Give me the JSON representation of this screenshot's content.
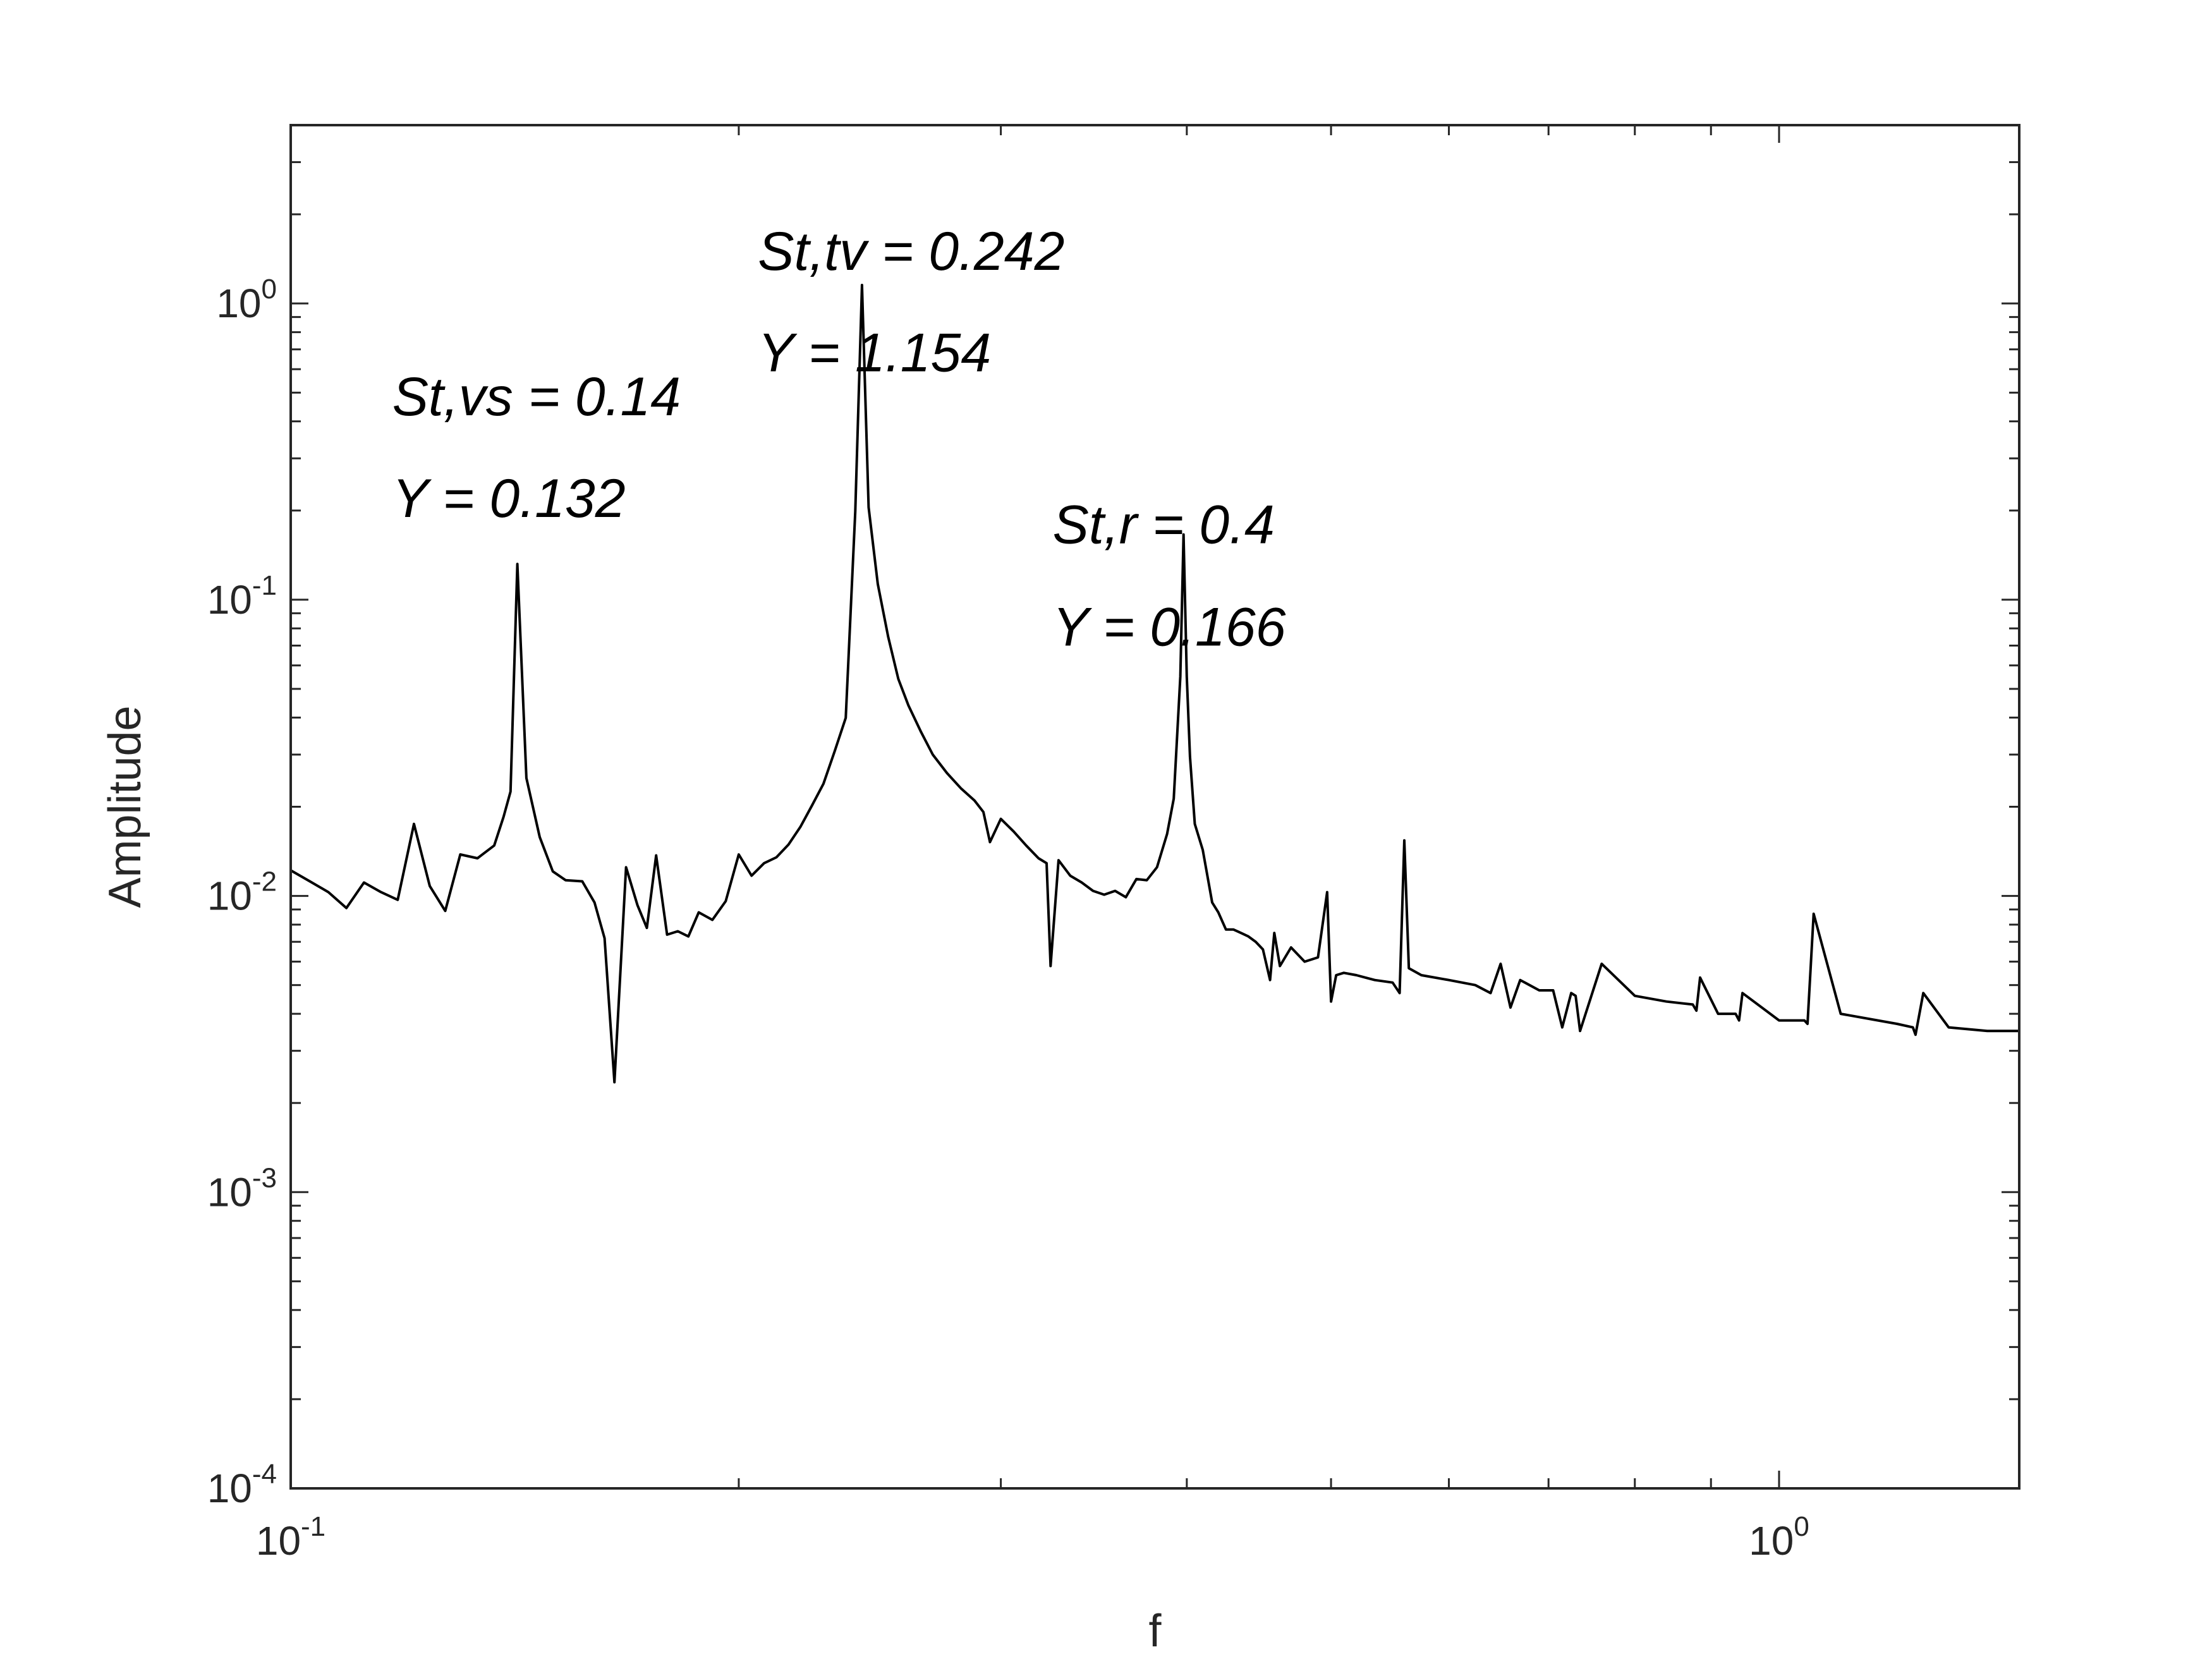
{
  "chart_data": {
    "type": "line",
    "xlabel": "f",
    "ylabel": "Amplitude",
    "xscale": "log",
    "yscale": "log",
    "xlim": [
      0.1,
      1.45
    ],
    "ylim": [
      0.0001,
      4
    ],
    "grid": false,
    "box": true,
    "x_ticks": [
      {
        "base": "10",
        "exp": "-1",
        "value": 0.1
      },
      {
        "base": "10",
        "exp": "0",
        "value": 1
      }
    ],
    "y_ticks": [
      {
        "base": "10",
        "exp": "0",
        "value": 1
      },
      {
        "base": "10",
        "exp": "-1",
        "value": 0.1
      },
      {
        "base": "10",
        "exp": "-2",
        "value": 0.01
      },
      {
        "base": "10",
        "exp": "-3",
        "value": 0.001
      },
      {
        "base": "10",
        "exp": "-4",
        "value": 0.0001
      }
    ],
    "line_color": "#000000",
    "annotations": [
      {
        "line1": "St,vs = 0.14",
        "line2": "Y = 0.132",
        "x": 0.117,
        "y1": 0.42,
        "y2": 0.19
      },
      {
        "line1": "St,tv = 0.242",
        "line2": "Y = 1.154",
        "x": 0.206,
        "y1": 1.3,
        "y2": 0.59
      },
      {
        "line1": "St,r = 0.4",
        "line2": "Y = 0.166",
        "x": 0.325,
        "y1": 0.155,
        "y2": 0.07
      }
    ],
    "series": [
      {
        "x": [
          0.1,
          0.103,
          0.106,
          0.109,
          0.112,
          0.115,
          0.118,
          0.121,
          0.124,
          0.127,
          0.13,
          0.1335,
          0.137,
          0.139,
          0.1405,
          0.142,
          0.144,
          0.147,
          0.15,
          0.153,
          0.157,
          0.16,
          0.1625,
          0.165,
          0.168,
          0.171,
          0.1735,
          0.176,
          0.179,
          0.182,
          0.185,
          0.188,
          0.192,
          0.196,
          0.2,
          0.204,
          0.208,
          0.212,
          0.216,
          0.22,
          0.224,
          0.228,
          0.232,
          0.236,
          0.2395,
          0.242,
          0.2445,
          0.248,
          0.252,
          0.256,
          0.26,
          0.265,
          0.27,
          0.276,
          0.282,
          0.288,
          0.292,
          0.295,
          0.3,
          0.306,
          0.312,
          0.318,
          0.322,
          0.324,
          0.328,
          0.334,
          0.34,
          0.346,
          0.352,
          0.358,
          0.364,
          0.37,
          0.376,
          0.382,
          0.388,
          0.392,
          0.396,
          0.398,
          0.4,
          0.402,
          0.405,
          0.41,
          0.416,
          0.42,
          0.425,
          0.43,
          0.435,
          0.44,
          0.445,
          0.45,
          0.455,
          0.458,
          0.462,
          0.47,
          0.48,
          0.49,
          0.497,
          0.5,
          0.504,
          0.51,
          0.52,
          0.535,
          0.55,
          0.556,
          0.56,
          0.564,
          0.575,
          0.6,
          0.625,
          0.64,
          0.65,
          0.66,
          0.67,
          0.69,
          0.705,
          0.715,
          0.725,
          0.73,
          0.735,
          0.76,
          0.8,
          0.84,
          0.875,
          0.88,
          0.885,
          0.91,
          0.935,
          0.94,
          0.945,
          1.0,
          1.04,
          1.045,
          1.055,
          1.1,
          1.2,
          1.23,
          1.235,
          1.25,
          1.3,
          1.38,
          1.45
        ],
        "y": [
          0.0122,
          0.0112,
          0.0103,
          0.0091,
          0.0111,
          0.0103,
          0.0097,
          0.0175,
          0.0108,
          0.0089,
          0.0138,
          0.0134,
          0.0148,
          0.0185,
          0.0225,
          0.132,
          0.025,
          0.0158,
          0.0121,
          0.0113,
          0.0112,
          0.0095,
          0.0072,
          0.00235,
          0.0125,
          0.0093,
          0.0078,
          0.0137,
          0.0074,
          0.0076,
          0.0073,
          0.0088,
          0.0083,
          0.0096,
          0.0138,
          0.0117,
          0.0129,
          0.0135,
          0.0149,
          0.0171,
          0.0202,
          0.0239,
          0.0308,
          0.0399,
          0.199,
          1.154,
          0.205,
          0.113,
          0.075,
          0.054,
          0.044,
          0.036,
          0.03,
          0.026,
          0.0231,
          0.021,
          0.0192,
          0.0152,
          0.0182,
          0.0165,
          0.0148,
          0.0134,
          0.0129,
          0.0058,
          0.0132,
          0.0117,
          0.0111,
          0.0104,
          0.0101,
          0.0104,
          0.0099,
          0.0114,
          0.0113,
          0.0125,
          0.0162,
          0.0213,
          0.055,
          0.166,
          0.055,
          0.0295,
          0.0175,
          0.0143,
          0.0095,
          0.0088,
          0.0077,
          0.0077,
          0.0075,
          0.0073,
          0.007,
          0.0066,
          0.0052,
          0.0075,
          0.0058,
          0.0067,
          0.006,
          0.0062,
          0.0103,
          0.0044,
          0.0054,
          0.0055,
          0.0054,
          0.0052,
          0.0051,
          0.0047,
          0.0154,
          0.0057,
          0.0054,
          0.0052,
          0.005,
          0.0047,
          0.0059,
          0.0042,
          0.0052,
          0.0048,
          0.0048,
          0.0036,
          0.0047,
          0.0046,
          0.0035,
          0.0059,
          0.0046,
          0.0044,
          0.0043,
          0.0041,
          0.0053,
          0.004,
          0.004,
          0.0038,
          0.0047,
          0.0038,
          0.0038,
          0.0037,
          0.0087,
          0.004,
          0.0037,
          0.0036,
          0.0034,
          0.0047,
          0.0036,
          0.0035,
          0.0035
        ]
      }
    ]
  }
}
